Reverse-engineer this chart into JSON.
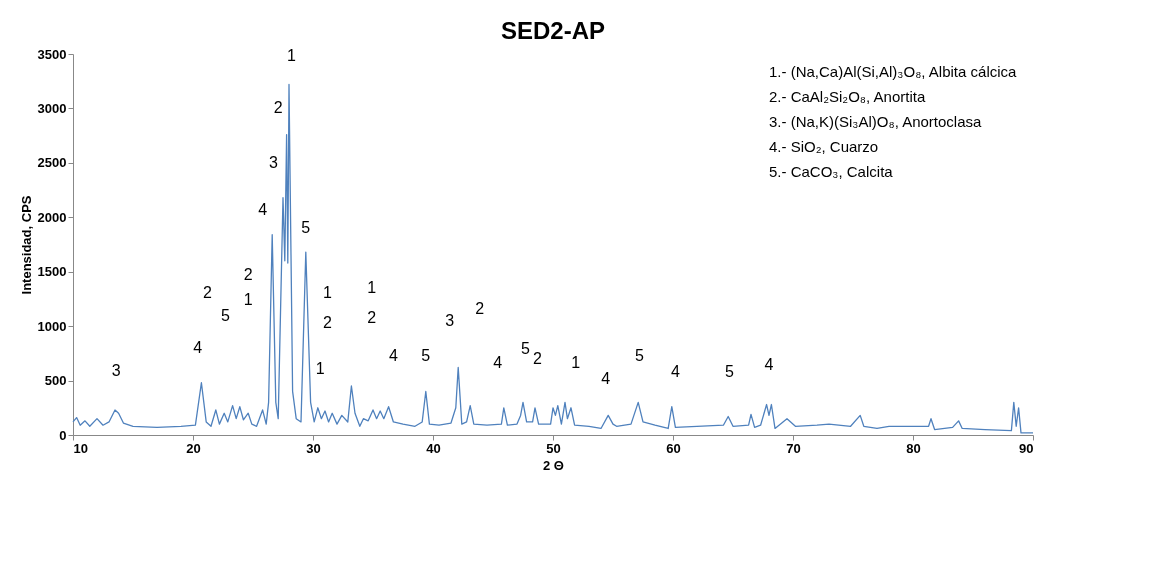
{
  "chart_data": {
    "type": "line",
    "title": "SED2-AP",
    "xlabel": "2 Θ",
    "ylabel": "Intensidad, CPS",
    "xlim": [
      10,
      90
    ],
    "xticks": [
      10,
      20,
      30,
      40,
      50,
      60,
      70,
      80,
      90
    ],
    "ylim": [
      0,
      3500
    ],
    "yticks": [
      0,
      500,
      1000,
      1500,
      2000,
      2500,
      3000,
      3500
    ],
    "grid": false,
    "series": [
      {
        "color": "#4f81bd",
        "x": [
          10,
          10.3,
          10.6,
          11,
          11.4,
          12,
          12.5,
          13,
          13.5,
          13.8,
          14.2,
          15,
          17,
          19,
          20.2,
          20.7,
          21.1,
          21.5,
          21.9,
          22.2,
          22.6,
          22.9,
          23.3,
          23.6,
          23.9,
          24.2,
          24.6,
          24.9,
          25.3,
          25.8,
          26.1,
          26.3,
          26.6,
          26.9,
          27.1,
          27.5,
          27.65,
          27.8,
          27.9,
          28.0,
          28.3,
          28.6,
          29.0,
          29.4,
          29.8,
          30.1,
          30.4,
          30.7,
          31.0,
          31.3,
          31.6,
          32.0,
          32.4,
          32.9,
          33.2,
          33.5,
          33.9,
          34.2,
          34.6,
          35.0,
          35.3,
          35.6,
          35.9,
          36.3,
          36.7,
          37.5,
          38.5,
          39.1,
          39.4,
          39.7,
          40.5,
          41.5,
          41.9,
          42.1,
          42.4,
          42.8,
          43.1,
          43.4,
          44.5,
          45.7,
          45.9,
          46.2,
          47.0,
          47.3,
          47.5,
          47.8,
          48.3,
          48.5,
          48.8,
          49.8,
          50.0,
          50.2,
          50.4,
          50.7,
          51.0,
          51.2,
          51.5,
          51.8,
          53,
          54,
          54.6,
          55.0,
          55.3,
          56.5,
          57.1,
          57.5,
          58.5,
          59.6,
          59.9,
          60.2,
          62,
          64.2,
          64.6,
          65.0,
          66.3,
          66.5,
          66.8,
          67.3,
          67.8,
          68.0,
          68.2,
          68.5,
          69.5,
          70.2,
          72,
          73,
          74.8,
          75.6,
          75.9,
          77,
          78,
          80,
          81.3,
          81.5,
          81.8,
          83.3,
          83.8,
          84.1,
          86,
          88.2,
          88.4,
          88.6,
          88.8,
          89.0,
          90
        ],
        "values": [
          120,
          160,
          90,
          130,
          80,
          150,
          90,
          120,
          230,
          200,
          110,
          80,
          70,
          80,
          90,
          480,
          120,
          80,
          230,
          100,
          200,
          120,
          270,
          150,
          260,
          140,
          200,
          100,
          80,
          230,
          100,
          300,
          1840,
          300,
          150,
          2180,
          1600,
          2760,
          1580,
          3220,
          400,
          150,
          120,
          1680,
          300,
          120,
          250,
          150,
          220,
          120,
          200,
          100,
          180,
          120,
          450,
          200,
          80,
          150,
          130,
          230,
          150,
          220,
          150,
          260,
          120,
          100,
          80,
          120,
          400,
          100,
          90,
          110,
          250,
          620,
          100,
          120,
          270,
          100,
          90,
          100,
          250,
          90,
          100,
          180,
          300,
          120,
          120,
          250,
          100,
          100,
          250,
          180,
          270,
          100,
          300,
          150,
          250,
          90,
          80,
          60,
          180,
          100,
          80,
          100,
          300,
          120,
          90,
          60,
          260,
          70,
          80,
          90,
          170,
          80,
          90,
          190,
          70,
          90,
          280,
          180,
          280,
          60,
          150,
          80,
          90,
          100,
          80,
          180,
          80,
          60,
          80,
          80,
          80,
          150,
          50,
          70,
          130,
          60,
          50,
          40,
          300,
          80,
          250,
          20,
          20
        ]
      }
    ],
    "annotations": [
      "1.- (Na,Ca)Al(Si,Al)₃O₈, Albita cálcica",
      "2.- CaAl₂Si₂O₈, Anortita",
      "3.- (Na,K)(Si₃Al)O₈, Anortoclasa",
      "4.- SiO₂, Cuarzo",
      "5.- CaCO₃, Calcita",
      "3",
      "4",
      "2",
      "5",
      "1",
      "2",
      "4",
      "3",
      "2",
      "1",
      "5",
      "1",
      "2",
      "1",
      "1",
      "2",
      "4",
      "5",
      "3",
      "2",
      "4",
      "5",
      "2",
      "1",
      "4",
      "5",
      "4",
      "5",
      "4"
    ]
  }
}
